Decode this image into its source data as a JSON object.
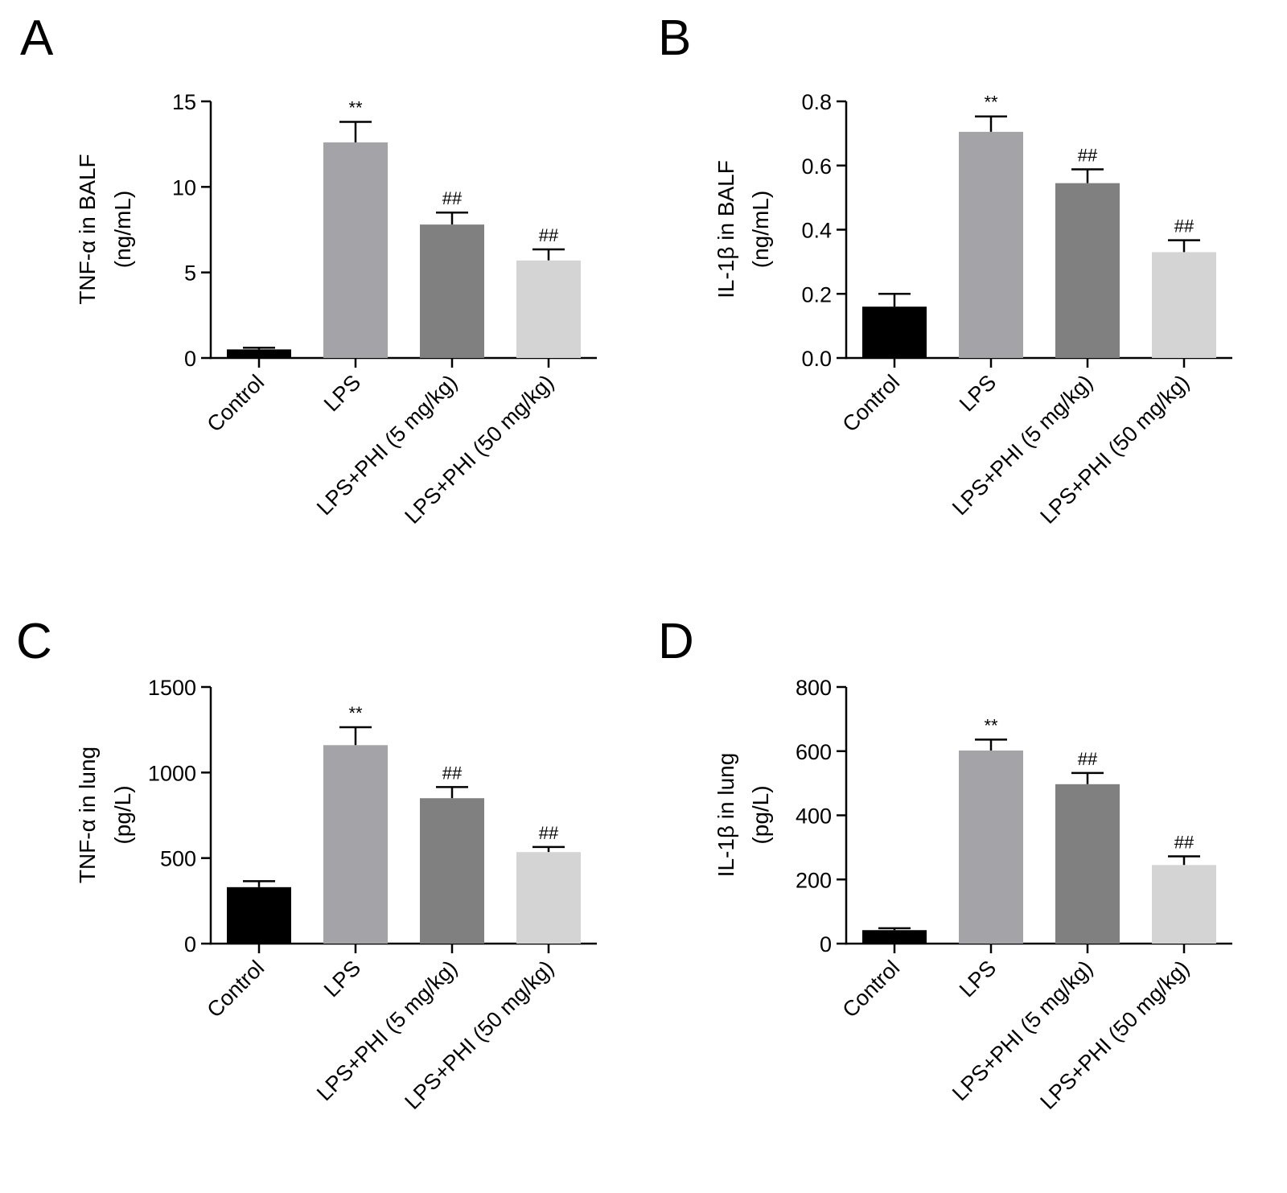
{
  "chart_data": [
    {
      "panel": "A",
      "type": "bar",
      "categories": [
        "Control",
        "LPS",
        "LPS+PHI (5 mg/kg)",
        "LPS+PHI (50 mg/kg)"
      ],
      "values": [
        0.5,
        12.6,
        7.8,
        5.7
      ],
      "errors": [
        0.1,
        1.2,
        0.7,
        0.65
      ],
      "significance": [
        "",
        "**",
        "##",
        "##"
      ],
      "colors": [
        "#000000",
        "#a3a3a8",
        "#808080",
        "#d4d4d4"
      ],
      "ylabel": [
        "TNF-α in BALF",
        "(ng/mL)"
      ],
      "ylim": [
        0,
        15
      ],
      "yticks": [
        0,
        5,
        10,
        15
      ],
      "ytick_labels": [
        "0",
        "5",
        "10",
        "15"
      ],
      "grid": false
    },
    {
      "panel": "B",
      "type": "bar",
      "categories": [
        "Control",
        "LPS",
        "LPS+PHI (5 mg/kg)",
        "LPS+PHI (50 mg/kg)"
      ],
      "values": [
        0.16,
        0.705,
        0.545,
        0.33
      ],
      "errors": [
        0.04,
        0.048,
        0.043,
        0.037
      ],
      "significance": [
        "",
        "**",
        "##",
        "##"
      ],
      "colors": [
        "#000000",
        "#a3a3a8",
        "#808080",
        "#d4d4d4"
      ],
      "ylabel": [
        "IL-1β in BALF",
        "(ng/mL)"
      ],
      "ylim": [
        0,
        0.8
      ],
      "yticks": [
        0,
        0.2,
        0.4,
        0.6,
        0.8
      ],
      "ytick_labels": [
        "0.0",
        "0.2",
        "0.4",
        "0.6",
        "0.8"
      ],
      "grid": false
    },
    {
      "panel": "C",
      "type": "bar",
      "categories": [
        "Control",
        "LPS",
        "LPS+PHI (5 mg/kg)",
        "LPS+PHI (50 mg/kg)"
      ],
      "values": [
        330,
        1160,
        850,
        535
      ],
      "errors": [
        35,
        105,
        65,
        30
      ],
      "significance": [
        "",
        "**",
        "##",
        "##"
      ],
      "colors": [
        "#000000",
        "#a3a3a8",
        "#808080",
        "#d4d4d4"
      ],
      "ylabel": [
        "TNF-α in lung",
        "(pg/L)"
      ],
      "ylim": [
        0,
        1500
      ],
      "yticks": [
        0,
        500,
        1000,
        1500
      ],
      "ytick_labels": [
        "0",
        "500",
        "1000",
        "1500"
      ],
      "grid": false
    },
    {
      "panel": "D",
      "type": "bar",
      "categories": [
        "Control",
        "LPS",
        "LPS+PHI (5 mg/kg)",
        "LPS+PHI (50 mg/kg)"
      ],
      "values": [
        42,
        602,
        497,
        245
      ],
      "errors": [
        6,
        34,
        35,
        27
      ],
      "significance": [
        "",
        "**",
        "##",
        "##"
      ],
      "colors": [
        "#000000",
        "#a3a3a8",
        "#808080",
        "#d4d4d4"
      ],
      "ylabel": [
        "IL-1β in lung",
        "(pg/L)"
      ],
      "ylim": [
        0,
        800
      ],
      "yticks": [
        0,
        200,
        400,
        600,
        800
      ],
      "ytick_labels": [
        "0",
        "200",
        "400",
        "600",
        "800"
      ],
      "grid": false
    }
  ]
}
